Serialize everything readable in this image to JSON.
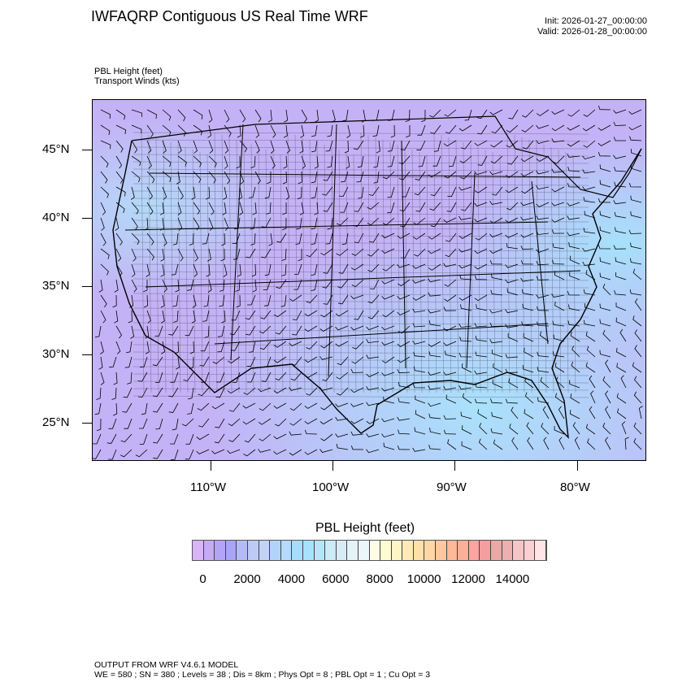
{
  "header": {
    "title": "IWFAQRP Contiguous US Real Time WRF",
    "init": "Init: 2026-01-27_00:00:00",
    "valid": "Valid: 2026-01-28_00:00:00",
    "field1": "PBL Height   (feet)",
    "field2": "Transport Winds   (kts)"
  },
  "map": {
    "lat_labels": [
      "45°N",
      "40°N",
      "35°N",
      "30°N",
      "25°N"
    ],
    "lon_labels": [
      "110°W",
      "100°W",
      "90°W",
      "80°W"
    ],
    "overlays": [
      "state-boundaries",
      "county-boundaries",
      "coastlines",
      "wind-barbs"
    ]
  },
  "colorbar": {
    "title": "PBL Height  (feet)",
    "labels": [
      "0",
      "2000",
      "4000",
      "6000",
      "8000",
      "10000",
      "12000",
      "14000"
    ],
    "colors": [
      "#d8b4f8",
      "#c6aaf6",
      "#b4a4f8",
      "#a8a4f6",
      "#b4bcf6",
      "#bccaf6",
      "#c2d2f8",
      "#b2d4fb",
      "#b4daff",
      "#a8dcfb",
      "#a6e2fb",
      "#b4e6f8",
      "#cceaf8",
      "#daebf8",
      "#e4f2fa",
      "#ebf6fb",
      "#fffde6",
      "#fffbd2",
      "#fff4c3",
      "#ffeab6",
      "#ffe0a8",
      "#ffd6a4",
      "#ffc8a0",
      "#ffb898",
      "#ffae98",
      "#ffa4a0",
      "#f49ea0",
      "#eca8a6",
      "#ecb0b0",
      "#f6c6c6",
      "#fad0d2",
      "#fee4e6"
    ]
  },
  "footer": {
    "line1": "OUTPUT FROM WRF V4.6.1 MODEL",
    "line2": "WE = 580 ; SN = 380 ; Levels = 38 ; Dis = 8km ; Phys Opt = 8 ; PBL Opt = 1 ; Cu Opt = 3"
  }
}
